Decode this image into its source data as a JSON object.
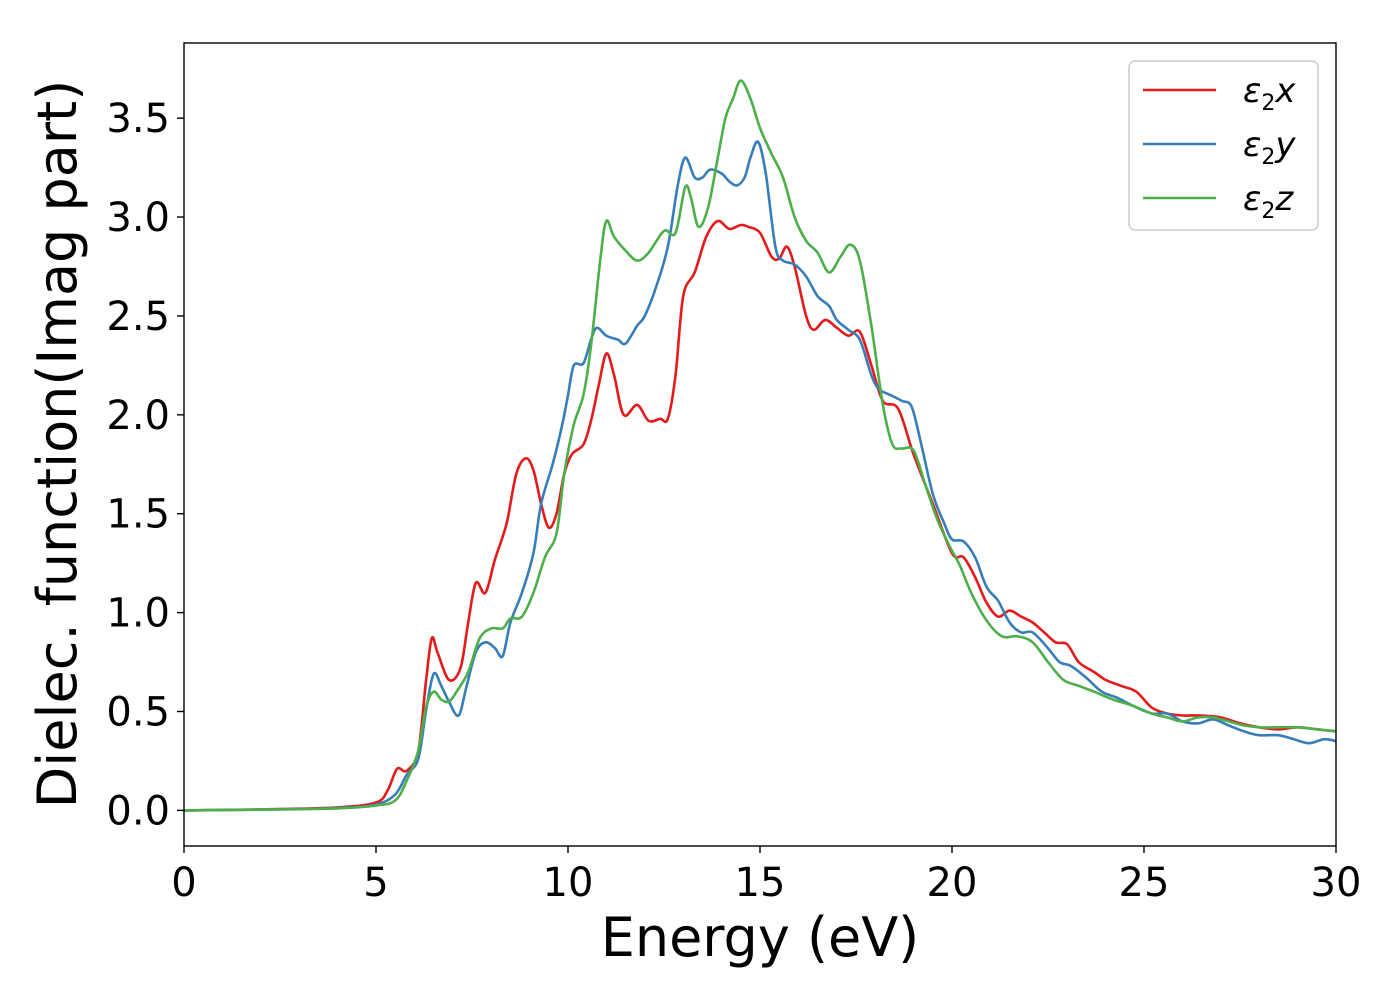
{
  "chart_data": {
    "type": "line",
    "xlabel": "Energy (eV)",
    "ylabel": "Dielec. function(Imag part)",
    "xlim": [
      0,
      30
    ],
    "ylim": [
      -0.18,
      3.88
    ],
    "xticks": [
      0,
      5,
      10,
      15,
      20,
      25,
      30
    ],
    "yticks": [
      0.0,
      0.5,
      1.0,
      1.5,
      2.0,
      2.5,
      3.0,
      3.5
    ],
    "grid": false,
    "legend_position": "top-right",
    "series": [
      {
        "name": "ε2x",
        "legend": {
          "symbol": "ε",
          "sub": "2",
          "suffix": "x"
        },
        "color": "#e41a1c",
        "points": [
          [
            0,
            0.0
          ],
          [
            2,
            0.005
          ],
          [
            4,
            0.015
          ],
          [
            5,
            0.04
          ],
          [
            5.3,
            0.1
          ],
          [
            5.55,
            0.21
          ],
          [
            5.8,
            0.2
          ],
          [
            6.1,
            0.3
          ],
          [
            6.3,
            0.65
          ],
          [
            6.45,
            0.87
          ],
          [
            6.6,
            0.8
          ],
          [
            6.9,
            0.66
          ],
          [
            7.2,
            0.72
          ],
          [
            7.4,
            0.95
          ],
          [
            7.6,
            1.15
          ],
          [
            7.85,
            1.1
          ],
          [
            8.1,
            1.27
          ],
          [
            8.4,
            1.45
          ],
          [
            8.65,
            1.7
          ],
          [
            8.9,
            1.78
          ],
          [
            9.1,
            1.72
          ],
          [
            9.3,
            1.55
          ],
          [
            9.5,
            1.43
          ],
          [
            9.7,
            1.5
          ],
          [
            9.9,
            1.7
          ],
          [
            10.1,
            1.8
          ],
          [
            10.4,
            1.85
          ],
          [
            10.6,
            1.97
          ],
          [
            10.8,
            2.15
          ],
          [
            11.0,
            2.31
          ],
          [
            11.2,
            2.2
          ],
          [
            11.45,
            2.0
          ],
          [
            11.8,
            2.05
          ],
          [
            12.1,
            1.97
          ],
          [
            12.4,
            1.98
          ],
          [
            12.6,
            1.98
          ],
          [
            12.8,
            2.2
          ],
          [
            13.0,
            2.6
          ],
          [
            13.3,
            2.72
          ],
          [
            13.6,
            2.9
          ],
          [
            13.9,
            2.98
          ],
          [
            14.2,
            2.94
          ],
          [
            14.5,
            2.96
          ],
          [
            14.7,
            2.95
          ],
          [
            15.0,
            2.92
          ],
          [
            15.3,
            2.8
          ],
          [
            15.5,
            2.79
          ],
          [
            15.7,
            2.85
          ],
          [
            15.9,
            2.75
          ],
          [
            16.2,
            2.5
          ],
          [
            16.4,
            2.43
          ],
          [
            16.7,
            2.48
          ],
          [
            17.0,
            2.44
          ],
          [
            17.3,
            2.4
          ],
          [
            17.6,
            2.42
          ],
          [
            17.9,
            2.25
          ],
          [
            18.2,
            2.07
          ],
          [
            18.6,
            2.03
          ],
          [
            19.0,
            1.8
          ],
          [
            19.5,
            1.55
          ],
          [
            20.0,
            1.3
          ],
          [
            20.3,
            1.28
          ],
          [
            20.6,
            1.18
          ],
          [
            20.9,
            1.05
          ],
          [
            21.2,
            0.98
          ],
          [
            21.5,
            1.01
          ],
          [
            21.8,
            0.98
          ],
          [
            22.1,
            0.95
          ],
          [
            22.4,
            0.9
          ],
          [
            22.7,
            0.85
          ],
          [
            23.0,
            0.84
          ],
          [
            23.3,
            0.75
          ],
          [
            23.7,
            0.7
          ],
          [
            24.0,
            0.66
          ],
          [
            24.4,
            0.63
          ],
          [
            24.8,
            0.6
          ],
          [
            25.2,
            0.52
          ],
          [
            25.6,
            0.49
          ],
          [
            26.0,
            0.48
          ],
          [
            26.5,
            0.48
          ],
          [
            27.0,
            0.47
          ],
          [
            27.5,
            0.44
          ],
          [
            28.0,
            0.42
          ],
          [
            28.5,
            0.41
          ],
          [
            29.0,
            0.42
          ],
          [
            29.5,
            0.41
          ],
          [
            30,
            0.4
          ]
        ]
      },
      {
        "name": "ε2y",
        "legend": {
          "symbol": "ε",
          "sub": "2",
          "suffix": "y"
        },
        "color": "#377eb8",
        "points": [
          [
            0,
            0.0
          ],
          [
            2,
            0.004
          ],
          [
            4,
            0.012
          ],
          [
            5,
            0.03
          ],
          [
            5.5,
            0.08
          ],
          [
            5.8,
            0.18
          ],
          [
            6.1,
            0.26
          ],
          [
            6.3,
            0.5
          ],
          [
            6.5,
            0.69
          ],
          [
            6.7,
            0.63
          ],
          [
            6.9,
            0.55
          ],
          [
            7.15,
            0.48
          ],
          [
            7.35,
            0.62
          ],
          [
            7.6,
            0.8
          ],
          [
            7.85,
            0.85
          ],
          [
            8.1,
            0.82
          ],
          [
            8.3,
            0.78
          ],
          [
            8.5,
            0.95
          ],
          [
            8.8,
            1.1
          ],
          [
            9.1,
            1.3
          ],
          [
            9.3,
            1.55
          ],
          [
            9.6,
            1.75
          ],
          [
            9.85,
            1.95
          ],
          [
            10.0,
            2.1
          ],
          [
            10.15,
            2.25
          ],
          [
            10.4,
            2.26
          ],
          [
            10.6,
            2.38
          ],
          [
            10.75,
            2.44
          ],
          [
            11.0,
            2.4
          ],
          [
            11.3,
            2.38
          ],
          [
            11.5,
            2.36
          ],
          [
            11.8,
            2.45
          ],
          [
            12.0,
            2.5
          ],
          [
            12.3,
            2.65
          ],
          [
            12.6,
            2.85
          ],
          [
            12.85,
            3.15
          ],
          [
            13.05,
            3.3
          ],
          [
            13.3,
            3.2
          ],
          [
            13.5,
            3.2
          ],
          [
            13.7,
            3.24
          ],
          [
            14.0,
            3.22
          ],
          [
            14.2,
            3.18
          ],
          [
            14.4,
            3.16
          ],
          [
            14.6,
            3.2
          ],
          [
            14.75,
            3.3
          ],
          [
            14.95,
            3.38
          ],
          [
            15.15,
            3.22
          ],
          [
            15.4,
            2.85
          ],
          [
            15.6,
            2.78
          ],
          [
            15.9,
            2.76
          ],
          [
            16.2,
            2.7
          ],
          [
            16.5,
            2.6
          ],
          [
            16.8,
            2.55
          ],
          [
            17.0,
            2.48
          ],
          [
            17.3,
            2.43
          ],
          [
            17.6,
            2.38
          ],
          [
            17.9,
            2.2
          ],
          [
            18.1,
            2.13
          ],
          [
            18.4,
            2.1
          ],
          [
            18.7,
            2.07
          ],
          [
            18.95,
            2.04
          ],
          [
            19.2,
            1.85
          ],
          [
            19.5,
            1.6
          ],
          [
            19.8,
            1.45
          ],
          [
            20.0,
            1.37
          ],
          [
            20.3,
            1.36
          ],
          [
            20.6,
            1.28
          ],
          [
            20.9,
            1.13
          ],
          [
            21.2,
            1.06
          ],
          [
            21.5,
            0.95
          ],
          [
            21.8,
            0.9
          ],
          [
            22.1,
            0.9
          ],
          [
            22.5,
            0.82
          ],
          [
            22.8,
            0.75
          ],
          [
            23.1,
            0.73
          ],
          [
            23.5,
            0.67
          ],
          [
            23.9,
            0.6
          ],
          [
            24.3,
            0.57
          ],
          [
            24.7,
            0.53
          ],
          [
            25.2,
            0.49
          ],
          [
            25.6,
            0.49
          ],
          [
            26.0,
            0.45
          ],
          [
            26.4,
            0.44
          ],
          [
            26.8,
            0.46
          ],
          [
            27.2,
            0.43
          ],
          [
            27.6,
            0.4
          ],
          [
            28.0,
            0.38
          ],
          [
            28.5,
            0.38
          ],
          [
            28.9,
            0.36
          ],
          [
            29.3,
            0.34
          ],
          [
            29.7,
            0.36
          ],
          [
            30,
            0.35
          ]
        ]
      },
      {
        "name": "ε2z",
        "legend": {
          "symbol": "ε",
          "sub": "2",
          "suffix": "z"
        },
        "color": "#4daf4a",
        "points": [
          [
            0,
            0.0
          ],
          [
            2,
            0.004
          ],
          [
            4,
            0.01
          ],
          [
            5,
            0.025
          ],
          [
            5.5,
            0.05
          ],
          [
            5.8,
            0.15
          ],
          [
            6.1,
            0.3
          ],
          [
            6.3,
            0.52
          ],
          [
            6.5,
            0.6
          ],
          [
            6.7,
            0.56
          ],
          [
            6.9,
            0.55
          ],
          [
            7.1,
            0.6
          ],
          [
            7.4,
            0.7
          ],
          [
            7.7,
            0.87
          ],
          [
            8.0,
            0.92
          ],
          [
            8.3,
            0.92
          ],
          [
            8.5,
            0.97
          ],
          [
            8.8,
            0.98
          ],
          [
            9.1,
            1.1
          ],
          [
            9.4,
            1.28
          ],
          [
            9.7,
            1.4
          ],
          [
            9.9,
            1.7
          ],
          [
            10.15,
            1.95
          ],
          [
            10.4,
            2.1
          ],
          [
            10.6,
            2.35
          ],
          [
            10.85,
            2.8
          ],
          [
            11.0,
            2.98
          ],
          [
            11.2,
            2.9
          ],
          [
            11.5,
            2.83
          ],
          [
            11.8,
            2.78
          ],
          [
            12.1,
            2.82
          ],
          [
            12.5,
            2.93
          ],
          [
            12.8,
            2.92
          ],
          [
            13.05,
            3.15
          ],
          [
            13.2,
            3.1
          ],
          [
            13.4,
            2.95
          ],
          [
            13.65,
            3.05
          ],
          [
            13.9,
            3.3
          ],
          [
            14.1,
            3.5
          ],
          [
            14.3,
            3.6
          ],
          [
            14.5,
            3.69
          ],
          [
            14.75,
            3.6
          ],
          [
            15.0,
            3.45
          ],
          [
            15.3,
            3.32
          ],
          [
            15.6,
            3.2
          ],
          [
            15.9,
            3.0
          ],
          [
            16.2,
            2.88
          ],
          [
            16.5,
            2.82
          ],
          [
            16.8,
            2.72
          ],
          [
            17.1,
            2.8
          ],
          [
            17.35,
            2.86
          ],
          [
            17.6,
            2.78
          ],
          [
            17.9,
            2.45
          ],
          [
            18.2,
            2.05
          ],
          [
            18.45,
            1.85
          ],
          [
            18.7,
            1.83
          ],
          [
            19.0,
            1.82
          ],
          [
            19.3,
            1.65
          ],
          [
            19.6,
            1.48
          ],
          [
            19.9,
            1.35
          ],
          [
            20.2,
            1.24
          ],
          [
            20.5,
            1.1
          ],
          [
            20.9,
            0.96
          ],
          [
            21.3,
            0.88
          ],
          [
            21.7,
            0.88
          ],
          [
            22.1,
            0.85
          ],
          [
            22.5,
            0.75
          ],
          [
            22.9,
            0.66
          ],
          [
            23.3,
            0.63
          ],
          [
            23.7,
            0.6
          ],
          [
            24.2,
            0.56
          ],
          [
            24.7,
            0.53
          ],
          [
            25.2,
            0.49
          ],
          [
            25.6,
            0.47
          ],
          [
            26.0,
            0.45
          ],
          [
            26.4,
            0.47
          ],
          [
            26.8,
            0.47
          ],
          [
            27.2,
            0.45
          ],
          [
            27.6,
            0.43
          ],
          [
            28.0,
            0.42
          ],
          [
            28.5,
            0.42
          ],
          [
            29.0,
            0.42
          ],
          [
            29.5,
            0.41
          ],
          [
            30,
            0.4
          ]
        ]
      }
    ]
  }
}
